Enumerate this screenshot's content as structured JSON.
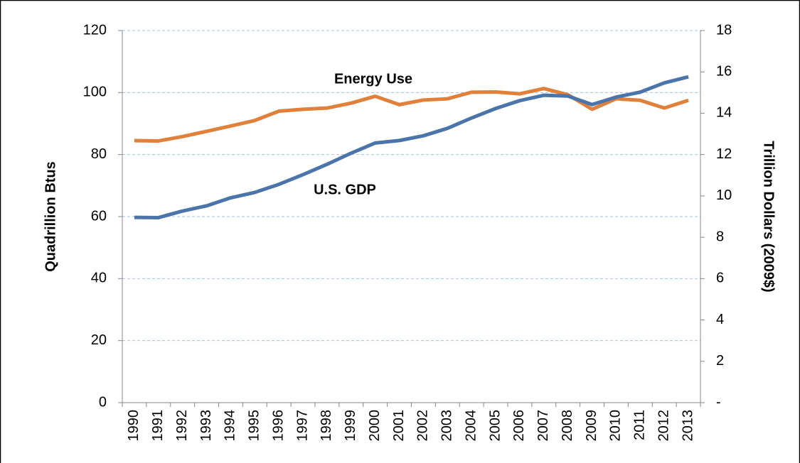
{
  "chart_data": {
    "type": "line",
    "categories": [
      "1990",
      "1991",
      "1992",
      "1993",
      "1994",
      "1995",
      "1996",
      "1997",
      "1998",
      "1999",
      "2000",
      "2001",
      "2002",
      "2003",
      "2004",
      "2005",
      "2006",
      "2007",
      "2008",
      "2009",
      "2010",
      "2011",
      "2012",
      "2013"
    ],
    "series": [
      {
        "name": "Energy Use",
        "color": "#e0803a",
        "axis": "y",
        "values": [
          84.5,
          84.4,
          85.8,
          87.5,
          89.2,
          91.0,
          94.0,
          94.6,
          95.0,
          96.6,
          98.8,
          96.1,
          97.6,
          98.0,
          100.1,
          100.2,
          99.6,
          101.3,
          99.3,
          94.6,
          98.0,
          97.5,
          95.0,
          97.5
        ]
      },
      {
        "name": "U.S. GDP",
        "color": "#4a74aa",
        "axis": "y2",
        "values": [
          8.96,
          8.95,
          9.27,
          9.52,
          9.91,
          10.17,
          10.56,
          11.03,
          11.53,
          12.07,
          12.56,
          12.68,
          12.91,
          13.27,
          13.77,
          14.23,
          14.61,
          14.87,
          14.83,
          14.42,
          14.78,
          15.02,
          15.47,
          15.76
        ]
      }
    ],
    "ylabel": "Quadrillion Btus",
    "y2label": "Trillion Dollars (2009$)",
    "ylim": [
      0,
      120
    ],
    "yticks": [
      0,
      20,
      40,
      60,
      80,
      100,
      120
    ],
    "y2lim": [
      0,
      18
    ],
    "y2ticks": [
      {
        "value": 0,
        "label": "-"
      },
      2,
      4,
      6,
      8,
      10,
      12,
      14,
      16,
      18
    ],
    "grid": true
  }
}
